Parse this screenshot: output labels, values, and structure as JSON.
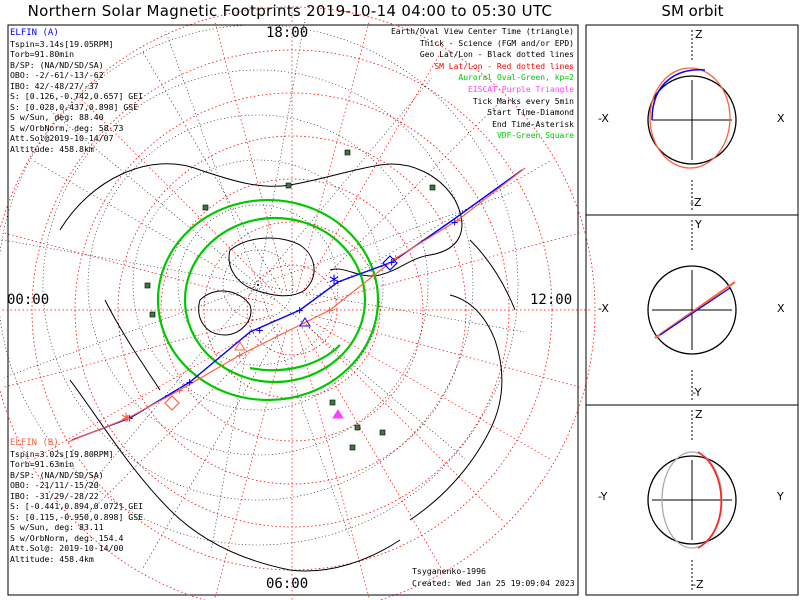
{
  "title": "Northern Solar Magnetic Footprints 2019-10-14 04:00 to 05:30 UTC",
  "orbit_title": "SM orbit",
  "clock_labels": {
    "top": "18:00",
    "left": "00:00",
    "right": "12:00",
    "bottom": "06:00"
  },
  "legend": [
    {
      "text": "Earth/Oval View Center Time (triangle)",
      "color": "#000000"
    },
    {
      "text": "Thick - Science (FGM and/or EPD)",
      "color": "#000000"
    },
    {
      "text": "Geo Lat/Lon - Black dotted lines",
      "color": "#000000"
    },
    {
      "text": "SM Lat/Lon - Red dotted lines",
      "color": "#ff0000"
    },
    {
      "text": "Auroral Oval-Green, kp=2",
      "color": "#00c800"
    },
    {
      "text": "EISCAT-Purple Triangle",
      "color": "#ff40ff"
    },
    {
      "text": "Tick Marks every 5min",
      "color": "#000000"
    },
    {
      "text": "Start Time-Diamond",
      "color": "#000000"
    },
    {
      "text": "End Time-Asterisk",
      "color": "#000000"
    },
    {
      "text": "VDF-Green Square",
      "color": "#00c800"
    }
  ],
  "elfin_a": {
    "name": "ELFIN (A)",
    "color": "#0000ff",
    "lines": [
      "Tspin=3.14s[19.05RPM]",
      "Torb=91.80min",
      "B/SP: (NA/ND/SD/SA)",
      "OBO: -2/-61/-13/-62",
      "IBO: 42/-48/27/-37",
      "S: [0.126,-0.742,0.657] GEI",
      "S: [0.028,0.437,0.898] GSE",
      "S w/Sun, deg: 88.40",
      "S w/OrbNorm, deg: 58.73",
      "Att.Sol@2019-10-14/07",
      "Altitude: 458.8km"
    ]
  },
  "elfin_b": {
    "name": "ELFIN (B)",
    "color": "#ff6040",
    "lines": [
      "Tspin=3.02s[19.80RPM]",
      "Torb=91.63min",
      "B/SP: (NA/ND/SD/SA)",
      "OBO: -21/11/-15/20",
      "IBO: -31/29/-28/22",
      "S: [-0.441,0.894,0.072] GEI",
      "S: [0.115,-0.950,0.898] GSE",
      "S w/Sun, deg: 83.11",
      "S w/OrbNorm, deg: 154.4",
      "Att.Sol@: 2019-10-14/00",
      "Altitude: 458.4km"
    ]
  },
  "footer": {
    "model": "Tsyganenko-1996",
    "created": "Created: Wed Jan 25 19:09:04 2023"
  },
  "panels": [
    {
      "name": "xz",
      "top": "Z",
      "bottom": "-Z",
      "left": "-X",
      "right": "X"
    },
    {
      "name": "xy",
      "top": "Y",
      "bottom": "-Y",
      "left": "-X",
      "right": "X"
    },
    {
      "name": "yz",
      "top": "Z",
      "bottom": "-Z",
      "left": "-Y",
      "right": "Y"
    }
  ],
  "chart_data": {
    "type": "line",
    "projection": "polar (north magnetic pole, SM coordinates)",
    "series": [
      {
        "name": "ELFIN (A)",
        "color": "#0000ff"
      },
      {
        "name": "ELFIN (B)",
        "color": "#ff6040"
      }
    ],
    "colors": {
      "sm_grid": "#ff0000",
      "geo_grid": "#000000",
      "oval": "#00c800",
      "eiscat": "#ff40ff"
    }
  }
}
